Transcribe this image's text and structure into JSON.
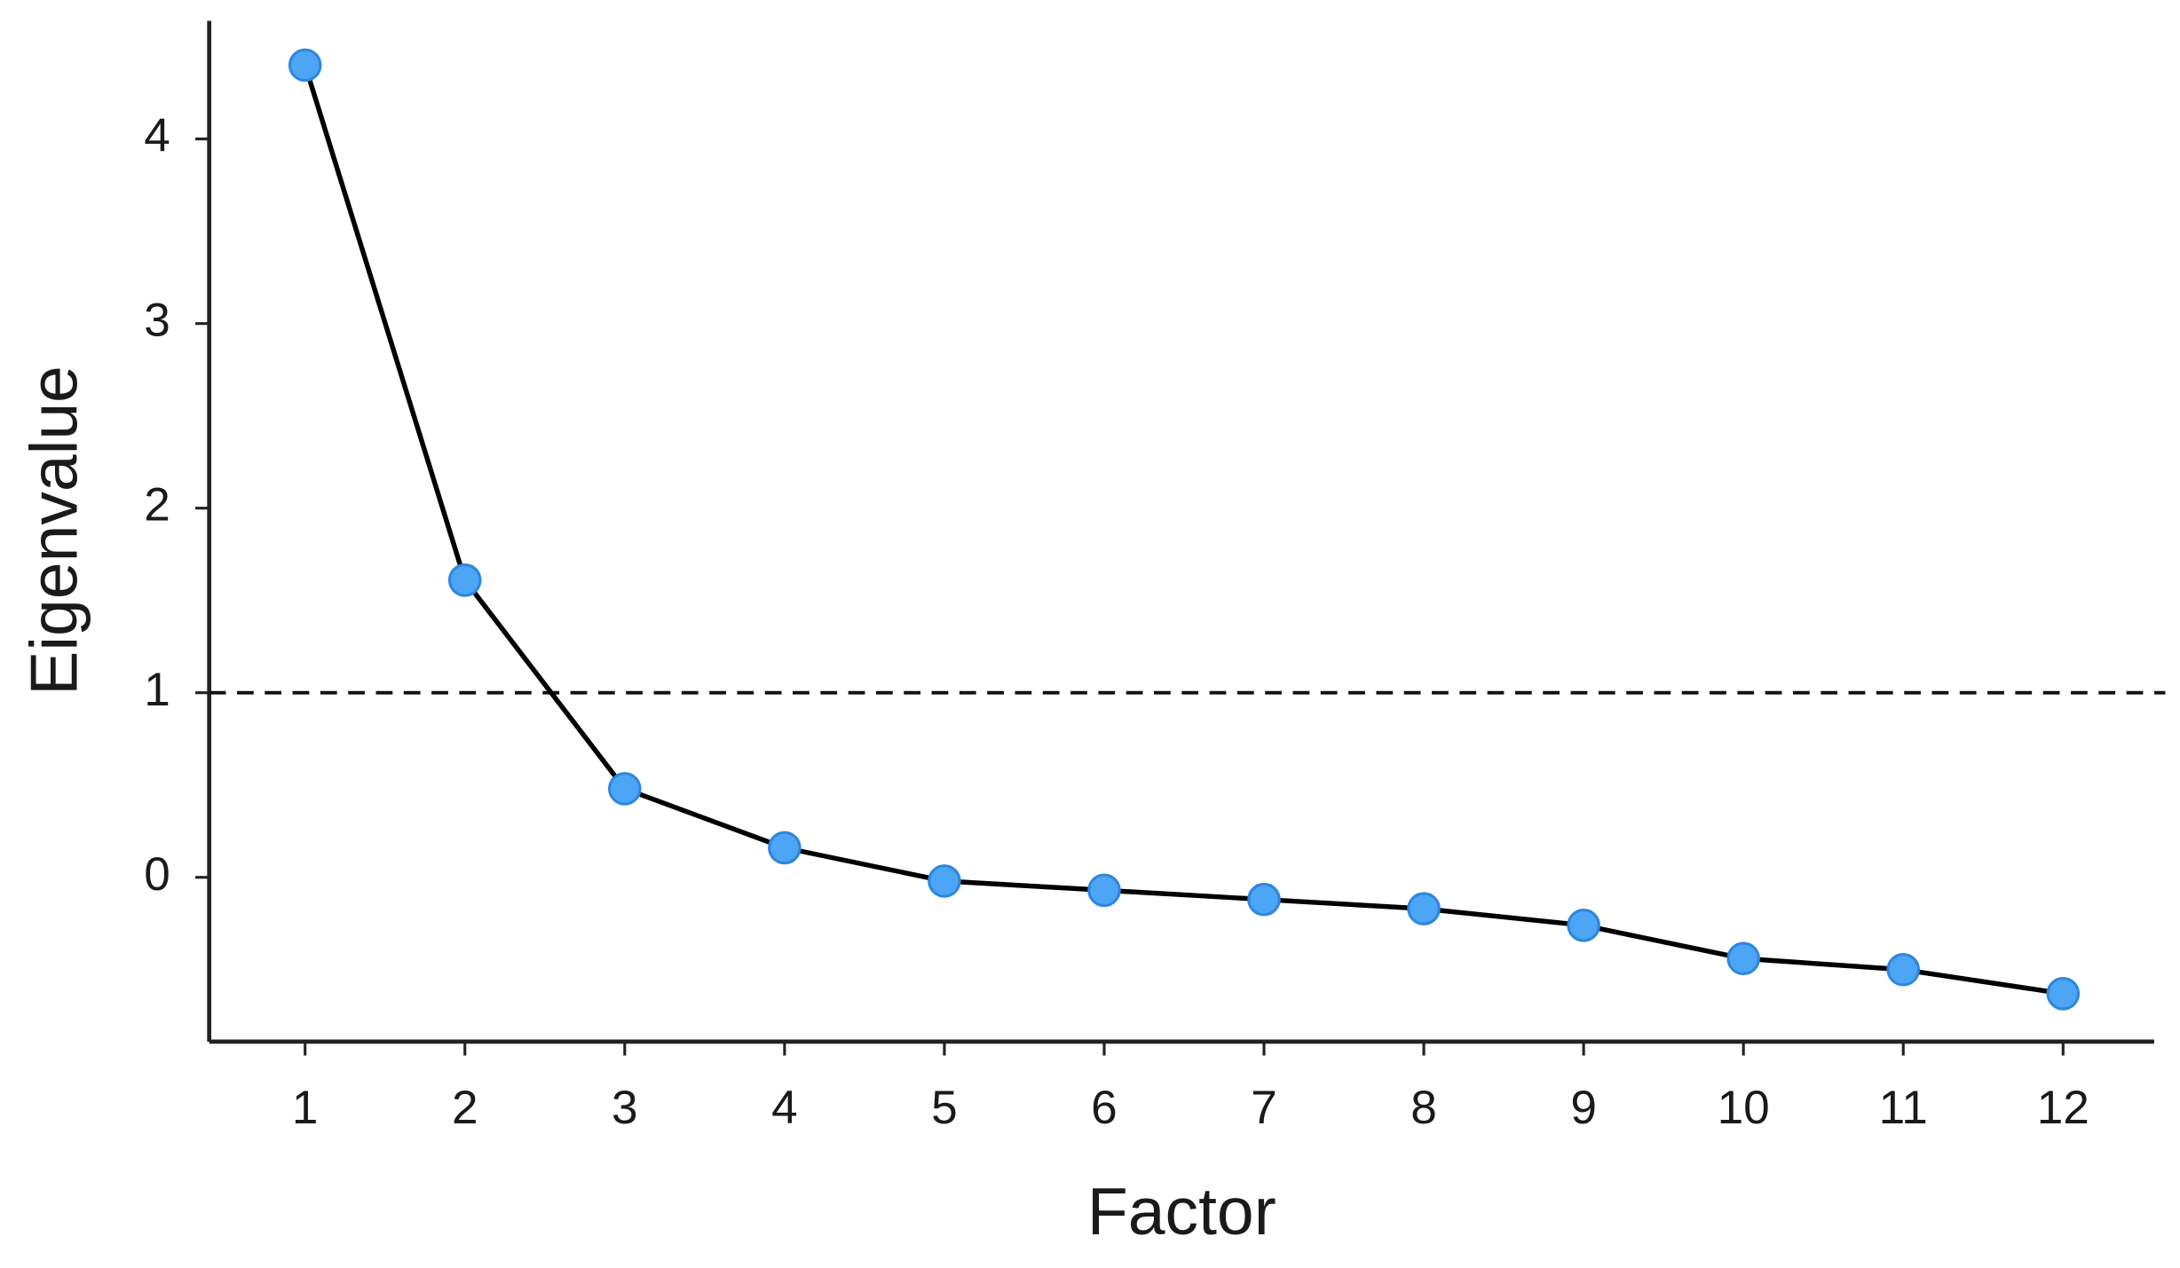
{
  "chart_data": {
    "type": "line",
    "xlabel": "Factor",
    "ylabel": "Eigenvalue",
    "x": [
      1,
      2,
      3,
      4,
      5,
      6,
      7,
      8,
      9,
      10,
      11,
      12
    ],
    "values": [
      4.4,
      1.61,
      0.48,
      0.16,
      -0.02,
      -0.07,
      -0.12,
      -0.17,
      -0.26,
      -0.44,
      -0.5,
      -0.63
    ],
    "line_color": "#000000",
    "marker_color": "#4da6f5",
    "marker_edge": "#2e86de",
    "reference_line": 1,
    "xlim": [
      0.4,
      12.57
    ],
    "xticks": [
      1,
      2,
      3,
      4,
      5,
      6,
      7,
      8,
      9,
      10,
      11,
      12
    ],
    "ylim": [
      -0.89,
      4.64
    ],
    "yticks": [
      0,
      1,
      2,
      3,
      4
    ],
    "grid": false
  }
}
